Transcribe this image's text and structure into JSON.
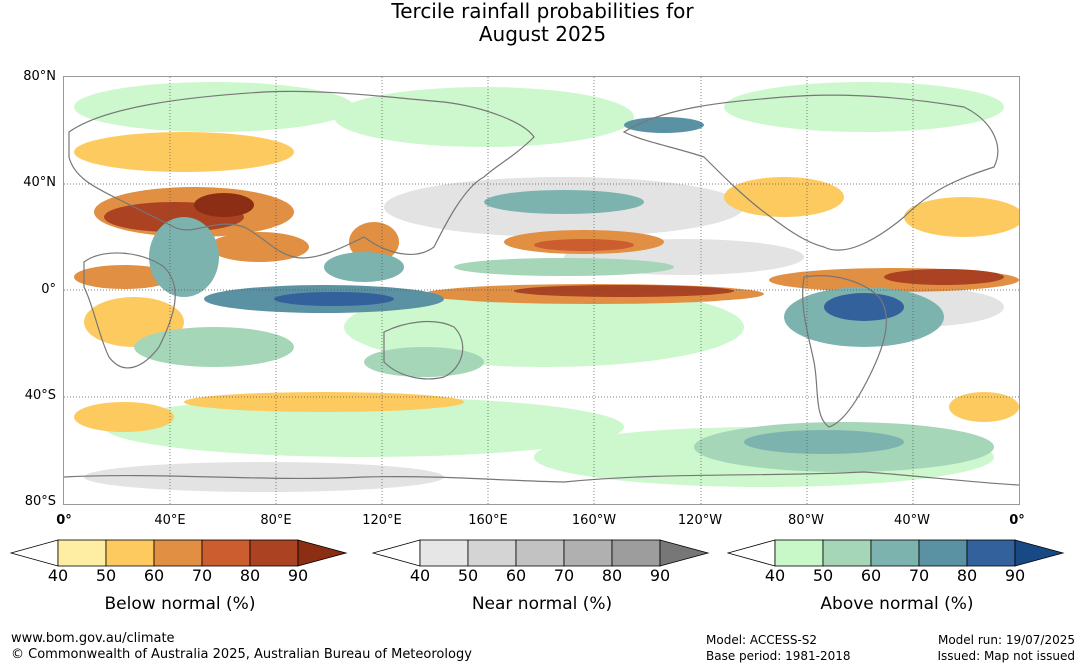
{
  "title_line1": "Tercile rainfall probabilities for",
  "title_line2": "August 2025",
  "lat_labels": [
    "80°N",
    "40°N",
    "0°",
    "40°S",
    "80°S"
  ],
  "lon_labels": [
    "0°",
    "40°E",
    "80°E",
    "120°E",
    "160°E",
    "160°W",
    "120°W",
    "80°W",
    "40°W",
    "0°"
  ],
  "legends": [
    {
      "caption": "Below normal (%)",
      "ticks": [
        "40",
        "50",
        "60",
        "70",
        "80",
        "90"
      ],
      "colors": [
        "#ffffff",
        "#fdeea4",
        "#fdca60",
        "#e08f43",
        "#cc5d2f",
        "#ab4222",
        "#8b2e14"
      ]
    },
    {
      "caption": "Near normal (%)",
      "ticks": [
        "40",
        "50",
        "60",
        "70",
        "80",
        "90"
      ],
      "colors": [
        "#ffffff",
        "#e6e6e6",
        "#d4d4d4",
        "#c2c2c2",
        "#b0b0b0",
        "#9d9d9d",
        "#777777"
      ]
    },
    {
      "caption": "Above normal (%)",
      "ticks": [
        "40",
        "50",
        "60",
        "70",
        "80",
        "90"
      ],
      "colors": [
        "#ffffff",
        "#c8f7c8",
        "#a5d6b8",
        "#7db3ae",
        "#5a92a4",
        "#33619b",
        "#174a84"
      ]
    }
  ],
  "footer": {
    "website": "www.bom.gov.au/climate",
    "copyright": "© Commonwealth of Australia 2025, Australian Bureau of Meteorology",
    "model": "Model: ACCESS-S2",
    "base_period": "Base period: 1981-2018",
    "model_run": "Model run: 19/07/2025",
    "issued": "Issued: Map not issued"
  }
}
